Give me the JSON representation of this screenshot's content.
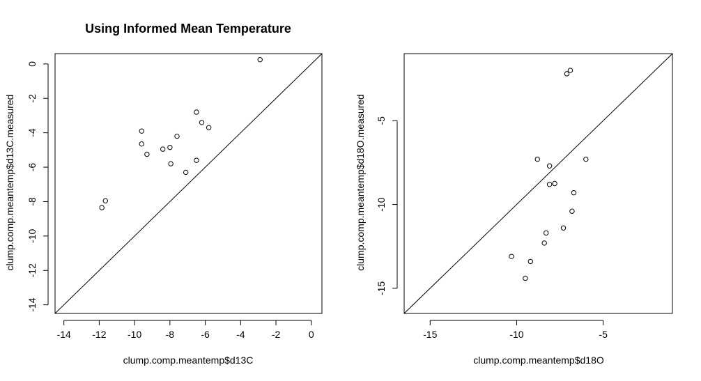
{
  "figure": {
    "background": "#ffffff",
    "ink": "#000000"
  },
  "chart_data": [
    {
      "type": "scatter",
      "title": "Using Informed Mean Temperature",
      "xlabel": "clump.comp.meantemp$d13C",
      "ylabel": "clump.comp.meantemp$d13C.measured",
      "xlim": [
        -14.5,
        0.6
      ],
      "ylim": [
        -14.5,
        0.6
      ],
      "xticks": [
        -14,
        -12,
        -10,
        -8,
        -6,
        -4,
        -2,
        0
      ],
      "yticks": [
        -14,
        -12,
        -10,
        -8,
        -6,
        -4,
        -2,
        0
      ],
      "reference_line": "y = x",
      "grid": false,
      "points": [
        {
          "x": -2.9,
          "y": 0.25
        },
        {
          "x": -6.5,
          "y": -2.8
        },
        {
          "x": -6.2,
          "y": -3.4
        },
        {
          "x": -5.8,
          "y": -3.7
        },
        {
          "x": -7.6,
          "y": -4.2
        },
        {
          "x": -9.6,
          "y": -3.9
        },
        {
          "x": -9.6,
          "y": -4.65
        },
        {
          "x": -9.3,
          "y": -5.25
        },
        {
          "x": -8.4,
          "y": -4.95
        },
        {
          "x": -8.0,
          "y": -4.85
        },
        {
          "x": -7.95,
          "y": -5.8
        },
        {
          "x": -6.5,
          "y": -5.6
        },
        {
          "x": -7.1,
          "y": -6.3
        },
        {
          "x": -11.65,
          "y": -7.95
        },
        {
          "x": -11.85,
          "y": -8.35
        }
      ]
    },
    {
      "type": "scatter",
      "title": "",
      "xlabel": "clump.comp.meantemp$d18O",
      "ylabel": "clump.comp.meantemp$d18O.measured",
      "xlim": [
        -16.5,
        -1.0
      ],
      "ylim": [
        -16.5,
        -1.0
      ],
      "xticks": [
        -15,
        -10,
        -5
      ],
      "yticks": [
        -15,
        -10,
        -5
      ],
      "reference_line": "y = x",
      "grid": false,
      "points": [
        {
          "x": -6.9,
          "y": -2.0
        },
        {
          "x": -7.1,
          "y": -2.2
        },
        {
          "x": -8.8,
          "y": -7.3
        },
        {
          "x": -8.1,
          "y": -7.7
        },
        {
          "x": -6.0,
          "y": -7.3
        },
        {
          "x": -8.1,
          "y": -8.8
        },
        {
          "x": -7.8,
          "y": -8.75
        },
        {
          "x": -6.7,
          "y": -9.3
        },
        {
          "x": -6.8,
          "y": -10.4
        },
        {
          "x": -7.3,
          "y": -11.4
        },
        {
          "x": -8.3,
          "y": -11.7
        },
        {
          "x": -8.4,
          "y": -12.3
        },
        {
          "x": -10.3,
          "y": -13.1
        },
        {
          "x": -9.2,
          "y": -13.4
        },
        {
          "x": -9.5,
          "y": -14.4
        }
      ]
    }
  ]
}
